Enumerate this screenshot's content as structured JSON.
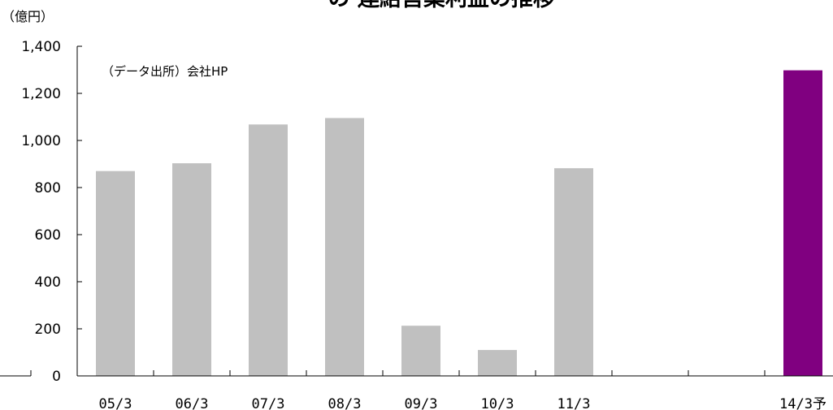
{
  "chart_data": {
    "type": "bar",
    "title": "ー の 連結営業利益の推移",
    "unit_label": "（億円）",
    "source_note": "（データ出所）会社HP",
    "categories": [
      "05/3",
      "06/3",
      "07/3",
      "08/3",
      "09/3",
      "10/3",
      "11/3",
      "",
      "",
      "14/3予"
    ],
    "values": [
      870,
      903,
      1068,
      1095,
      213,
      110,
      882,
      null,
      null,
      1298
    ],
    "bar_colors": [
      "#c0c0c0",
      "#c0c0c0",
      "#c0c0c0",
      "#c0c0c0",
      "#c0c0c0",
      "#c0c0c0",
      "#c0c0c0",
      "#c0c0c0",
      "#c0c0c0",
      "#800080"
    ],
    "ylim": [
      0,
      1400
    ],
    "yticks": [
      0,
      200,
      400,
      600,
      800,
      1000,
      1200,
      1400
    ],
    "ytick_labels": [
      "0",
      "200",
      "400",
      "600",
      "800",
      "1,000",
      "1,200",
      "1,400"
    ],
    "grid": false,
    "legend": "none"
  }
}
